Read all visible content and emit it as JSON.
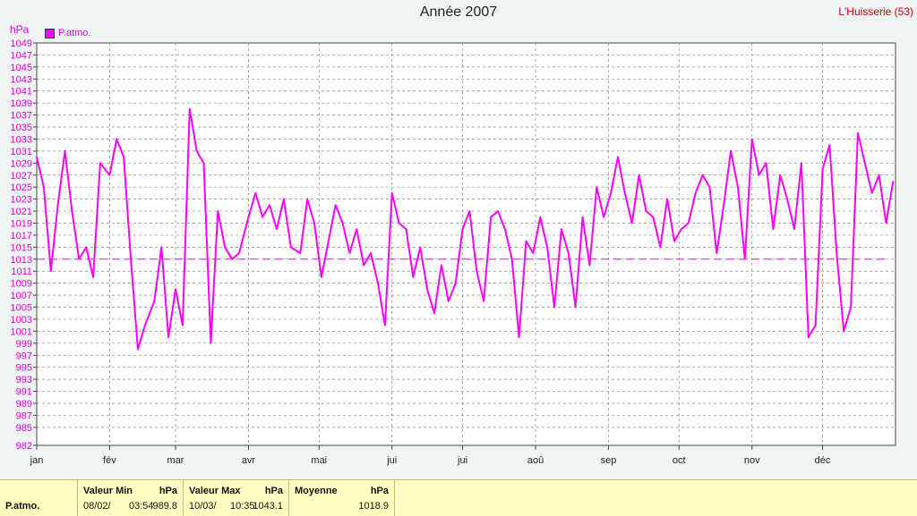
{
  "header": {
    "title": "Année 2007",
    "station": "L'Huisserie (53)"
  },
  "legend": {
    "label": "P.atmo.",
    "color": "#ff00ff"
  },
  "stats": {
    "series_label": "P.atmo.",
    "min": {
      "title": "Valeur Min",
      "unit": "hPa",
      "date": "08/02/",
      "time": "03:54",
      "value": "989.8"
    },
    "max": {
      "title": "Valeur Max",
      "unit": "hPa",
      "date": "10/03/",
      "time": "10:35",
      "value": "1043.1"
    },
    "avg": {
      "title": "Moyenne",
      "unit": "hPa",
      "value": "1018.9"
    }
  },
  "chart_data": {
    "type": "line",
    "title": "Année 2007",
    "ylabel": "hPa",
    "ylim": [
      982,
      1049
    ],
    "yticks": [
      982,
      985,
      987,
      989,
      991,
      993,
      995,
      997,
      999,
      1001,
      1003,
      1005,
      1007,
      1009,
      1011,
      1013,
      1015,
      1017,
      1019,
      1021,
      1023,
      1025,
      1027,
      1029,
      1031,
      1033,
      1035,
      1037,
      1039,
      1041,
      1043,
      1045,
      1047,
      1049
    ],
    "xlim": [
      0,
      365
    ],
    "month_ticks": [
      {
        "label": "jan",
        "day": 0
      },
      {
        "label": "fév",
        "day": 31
      },
      {
        "label": "mar",
        "day": 59
      },
      {
        "label": "avr",
        "day": 90
      },
      {
        "label": "mai",
        "day": 120
      },
      {
        "label": "jui",
        "day": 151
      },
      {
        "label": "jui",
        "day": 181
      },
      {
        "label": "aoû",
        "day": 212
      },
      {
        "label": "sep",
        "day": 243
      },
      {
        "label": "oct",
        "day": 273
      },
      {
        "label": "nov",
        "day": 304
      },
      {
        "label": "déc",
        "day": 334
      }
    ],
    "grid": true,
    "average_line": 1013,
    "series": [
      {
        "name": "P.atmo.",
        "color": "#ff00ff",
        "x": [
          0,
          3,
          6,
          9,
          12,
          15,
          18,
          21,
          24,
          27,
          31,
          34,
          37,
          40,
          43,
          46,
          50,
          53,
          56,
          59,
          62,
          65,
          68,
          71,
          74,
          77,
          80,
          83,
          86,
          90,
          93,
          96,
          99,
          102,
          105,
          108,
          112,
          115,
          118,
          121,
          124,
          127,
          130,
          133,
          136,
          139,
          142,
          145,
          148,
          151,
          154,
          157,
          160,
          163,
          166,
          169,
          172,
          175,
          178,
          181,
          184,
          187,
          190,
          193,
          196,
          199,
          202,
          205,
          208,
          211,
          214,
          217,
          220,
          223,
          226,
          229,
          232,
          235,
          238,
          241,
          244,
          247,
          250,
          253,
          256,
          259,
          262,
          265,
          268,
          271,
          274,
          277,
          280,
          283,
          286,
          289,
          292,
          295,
          298,
          301,
          304,
          307,
          310,
          313,
          316,
          319,
          322,
          325,
          328,
          331,
          334,
          337,
          340,
          343,
          346,
          349,
          352,
          355,
          358,
          361,
          364
        ],
        "values": [
          1030,
          1025,
          1011,
          1022,
          1031,
          1021,
          1013,
          1015,
          1010,
          1029,
          1027,
          1033,
          1030,
          1013,
          998,
          1002,
          1006,
          1015,
          1000,
          1008,
          1002,
          1038,
          1031,
          1029,
          999,
          1021,
          1015,
          1013,
          1014,
          1020,
          1024,
          1020,
          1022,
          1018,
          1023,
          1015,
          1014,
          1023,
          1019,
          1010,
          1016,
          1022,
          1019,
          1014,
          1018,
          1012,
          1014,
          1009,
          1002,
          1024,
          1019,
          1018,
          1010,
          1015,
          1008,
          1004,
          1012,
          1006,
          1009,
          1018,
          1021,
          1011,
          1006,
          1020,
          1021,
          1018,
          1013,
          1000,
          1016,
          1014,
          1020,
          1015,
          1005,
          1018,
          1014,
          1005,
          1020,
          1012,
          1025,
          1020,
          1024,
          1030,
          1024,
          1019,
          1027,
          1021,
          1020,
          1015,
          1023,
          1016,
          1018,
          1019,
          1024,
          1027,
          1025,
          1014,
          1022,
          1031,
          1025,
          1013,
          1033,
          1027,
          1029,
          1018,
          1027,
          1023,
          1018,
          1029,
          1000,
          1002,
          1028,
          1032,
          1014,
          1001,
          1005,
          1034,
          1029,
          1024,
          1027,
          1019,
          1026
        ]
      }
    ]
  }
}
